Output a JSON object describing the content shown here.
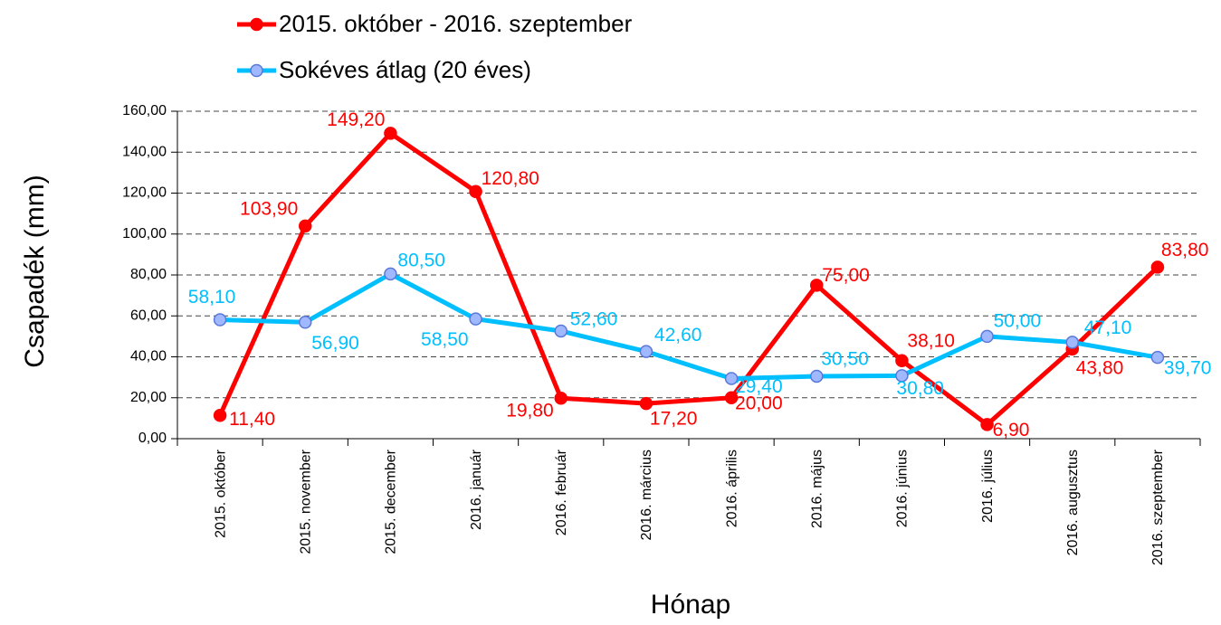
{
  "chart_data": {
    "type": "line",
    "x_label": "Hónap",
    "y_label": "Csapadék (mm)",
    "categories": [
      "2015. október",
      "2015. november",
      "2015. december",
      "2016. január",
      "2016. február",
      "2016. március",
      "2016. április",
      "2016. május",
      "2016. június",
      "2016. július",
      "2016. augusztus",
      "2016. szeptember"
    ],
    "series": [
      {
        "name": "2015. október - 2016. szeptember",
        "color": "#ff0000",
        "values": [
          11.4,
          103.9,
          149.2,
          120.8,
          19.8,
          17.2,
          20.0,
          75.0,
          38.1,
          6.9,
          43.8,
          83.8
        ],
        "value_labels": [
          "11,40",
          "103,90",
          "149,20",
          "120,80",
          "19,80",
          "17,20",
          "20,00",
          "75,00",
          "38,10",
          "6,90",
          "43,80",
          "83,80"
        ]
      },
      {
        "name": "Sokéves átlag (20 éves)",
        "color": "#00bfff",
        "values": [
          58.1,
          56.9,
          80.5,
          58.5,
          52.6,
          42.6,
          29.4,
          30.5,
          30.8,
          50.0,
          47.1,
          39.7
        ],
        "value_labels": [
          "58,10",
          "56,90",
          "80,50",
          "58,50",
          "52,60",
          "42,60",
          "29,40",
          "30,50",
          "30,80",
          "50,00",
          "47,10",
          "39,70"
        ]
      }
    ],
    "ylim": [
      0,
      160
    ],
    "yticks": [
      {
        "value": 0,
        "label": "0,00"
      },
      {
        "value": 20,
        "label": "20,00"
      },
      {
        "value": 40,
        "label": "40,00"
      },
      {
        "value": 60,
        "label": "60,00"
      },
      {
        "value": 80,
        "label": "80,00"
      },
      {
        "value": 100,
        "label": "100,00"
      },
      {
        "value": 120,
        "label": "120,00"
      },
      {
        "value": 140,
        "label": "140,00"
      },
      {
        "value": 160,
        "label": "160,00"
      }
    ],
    "grid": true,
    "legend": "top"
  }
}
